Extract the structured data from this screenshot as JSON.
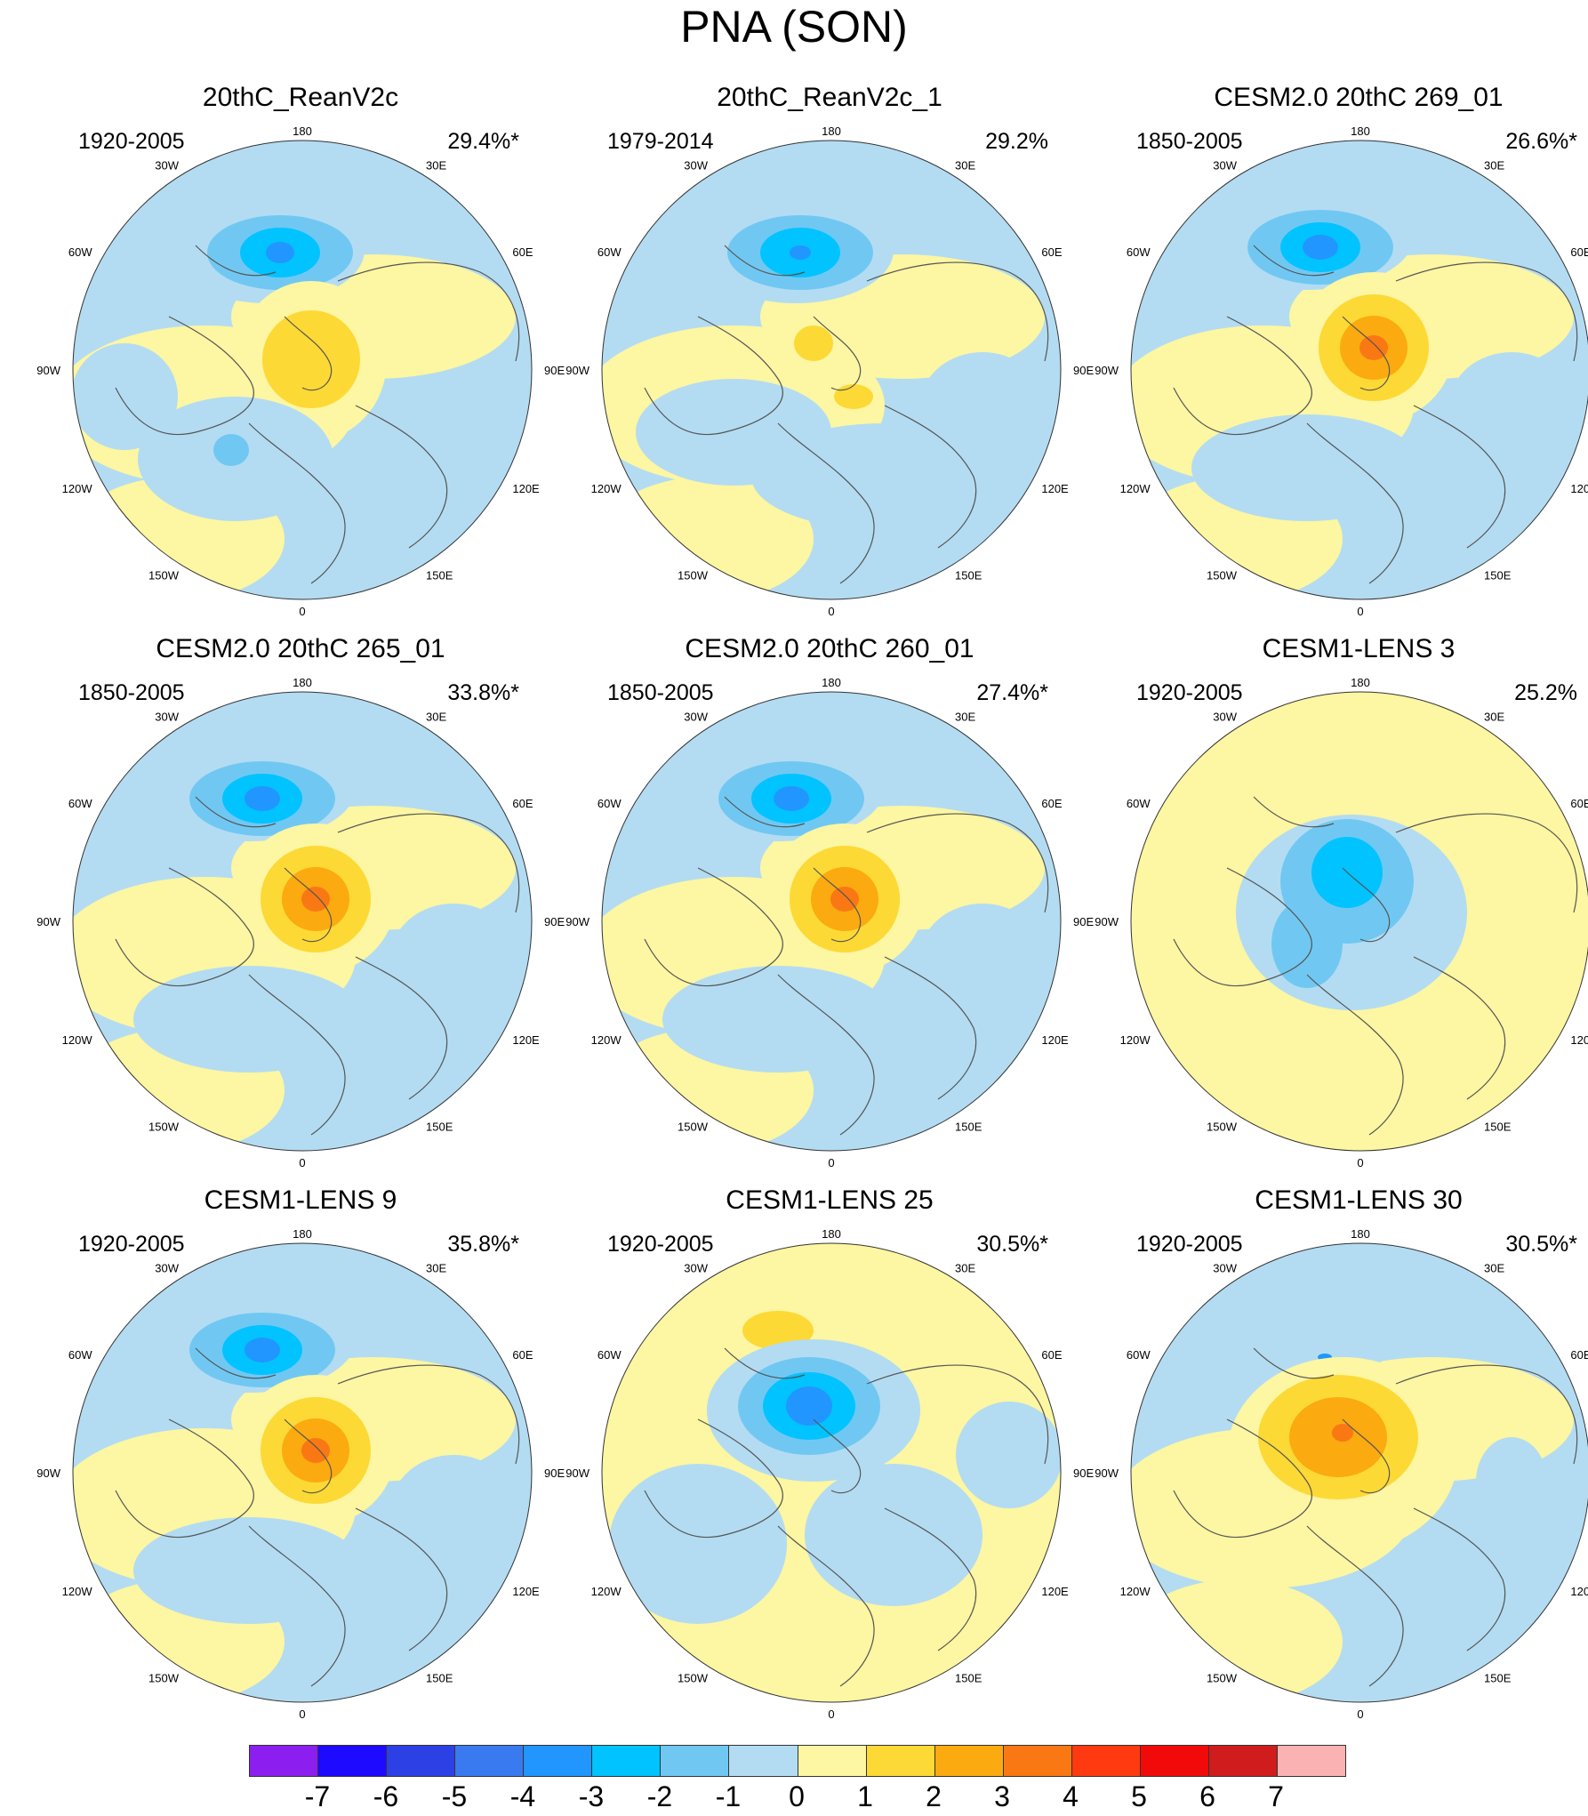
{
  "title": "PNA (SON)",
  "longitude_labels": {
    "top": "180",
    "bottom": "0",
    "left": [
      "150W",
      "120W",
      "90W",
      "60W",
      "30W"
    ],
    "right": [
      "150E",
      "120E",
      "90E",
      "60E",
      "30E"
    ]
  },
  "colors": {
    "ocean_neg1": "#b3dcf2",
    "pos1": "#fdf6a2",
    "land_lines": "#555555"
  },
  "panels": [
    {
      "title": "20thC_ReanV2c",
      "period": "1920-2005",
      "percent": "29.4%*",
      "pattern": "A"
    },
    {
      "title": "20thC_ReanV2c_1",
      "period": "1979-2014",
      "percent": "29.2%",
      "pattern": "B"
    },
    {
      "title": "CESM2.0 20thC 269_01",
      "period": "1850-2005",
      "percent": "26.6%*",
      "pattern": "C"
    },
    {
      "title": "CESM2.0 20thC 265_01",
      "period": "1850-2005",
      "percent": "33.8%*",
      "pattern": "C"
    },
    {
      "title": "CESM2.0 20thC 260_01",
      "period": "1850-2005",
      "percent": "27.4%*",
      "pattern": "C"
    },
    {
      "title": "CESM1-LENS 3",
      "period": "1920-2005",
      "percent": "25.2%",
      "pattern": "D"
    },
    {
      "title": "CESM1-LENS 9",
      "period": "1920-2005",
      "percent": "35.8%*",
      "pattern": "C"
    },
    {
      "title": "CESM1-LENS 25",
      "period": "1920-2005",
      "percent": "30.5%*",
      "pattern": "E"
    },
    {
      "title": "CESM1-LENS 30",
      "period": "1920-2005",
      "percent": "30.5%*",
      "pattern": "F"
    }
  ],
  "colorbar": {
    "colors": [
      "#8c1ef0",
      "#1e0aff",
      "#2d40e6",
      "#3a7af0",
      "#2196ff",
      "#00c3ff",
      "#70c8f2",
      "#b3dcf2",
      "#fdf6a2",
      "#fdd935",
      "#fbaa10",
      "#fa7814",
      "#ff3a10",
      "#f20a0a",
      "#d01c1c",
      "#fbb2b2"
    ],
    "ticks": [
      "-7",
      "-6",
      "-5",
      "-4",
      "-3",
      "-2",
      "-1",
      "0",
      "1",
      "2",
      "3",
      "4",
      "5",
      "6",
      "7"
    ]
  }
}
